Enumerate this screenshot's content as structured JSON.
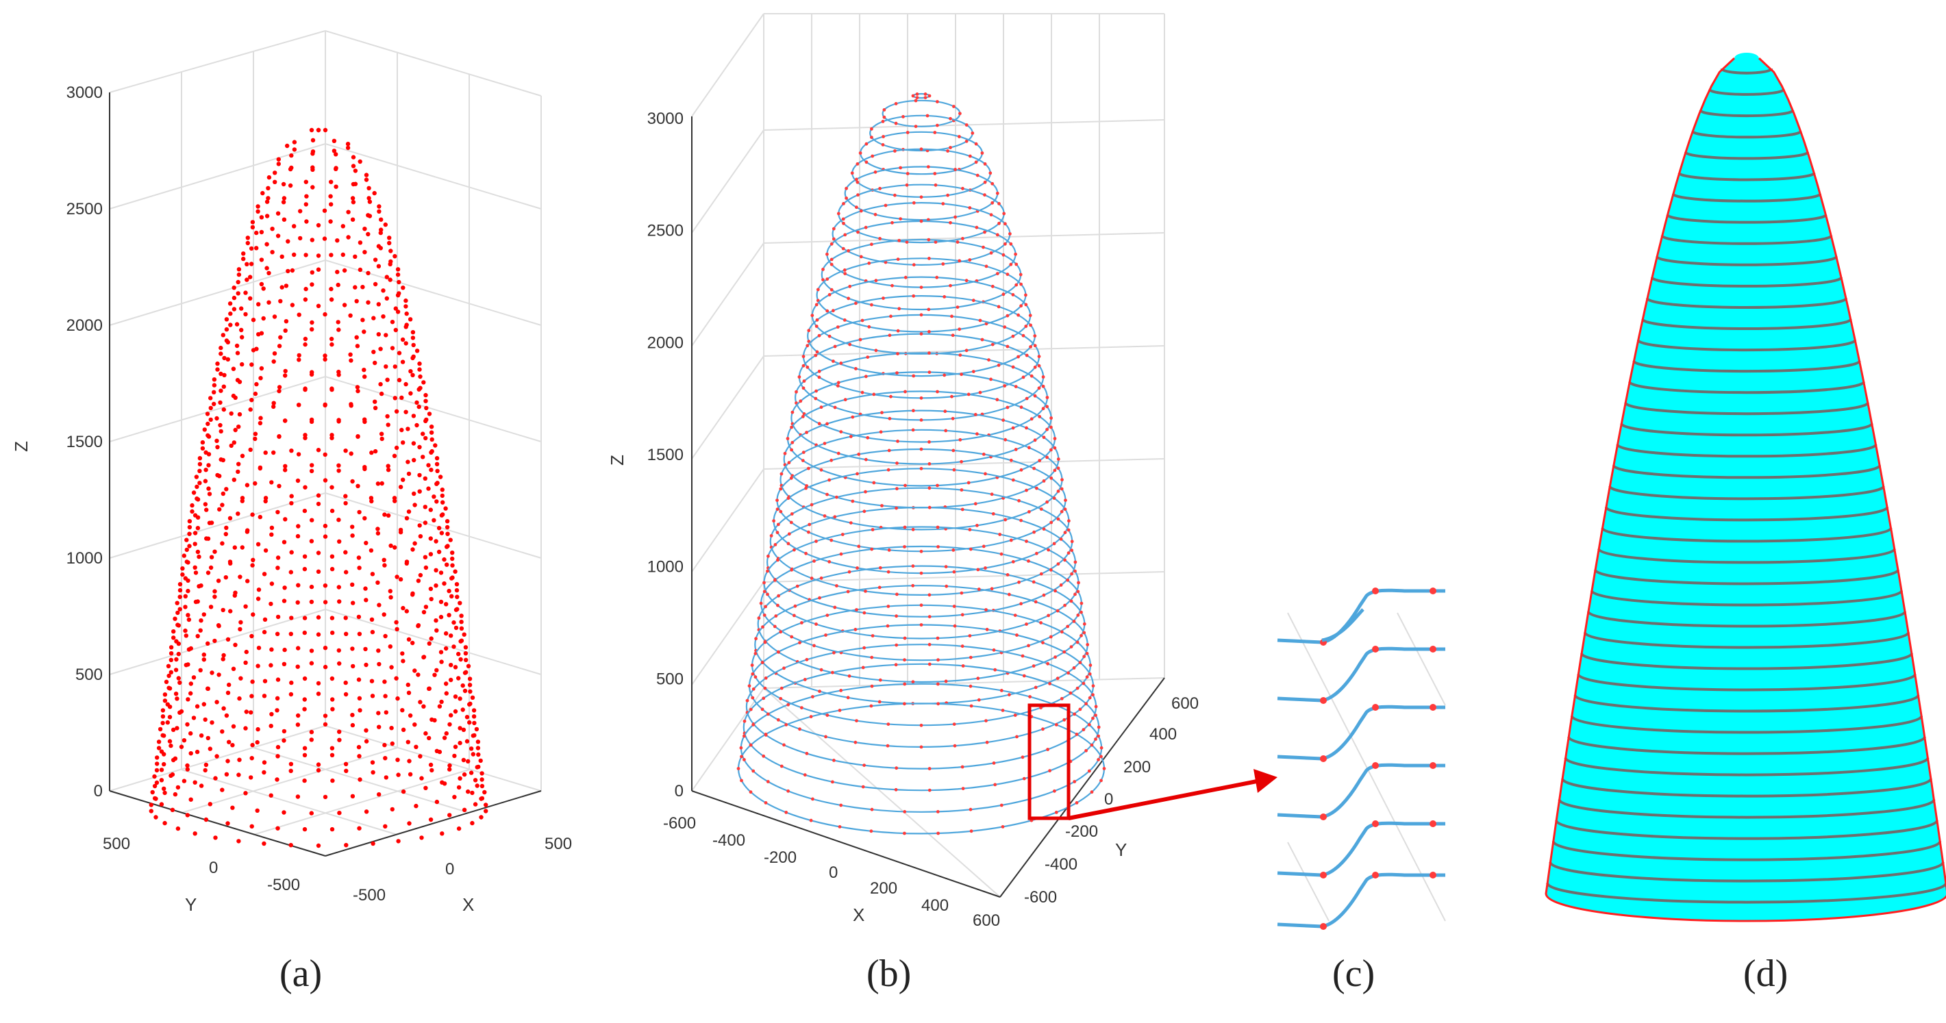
{
  "panels": {
    "a": {
      "label": "(a)",
      "z_axis": {
        "name": "Z",
        "ticks": [
          "0",
          "500",
          "1000",
          "1500",
          "2000",
          "2500",
          "3000"
        ]
      },
      "y_axis": {
        "name": "Y",
        "ticks": [
          "500",
          "0",
          "-500"
        ]
      },
      "x_axis": {
        "name": "X",
        "ticks": [
          "-500",
          "0",
          "500"
        ]
      },
      "point_color": "#ff0000"
    },
    "b": {
      "label": "(b)",
      "z_axis": {
        "name": "Z",
        "ticks": [
          "0",
          "500",
          "1000",
          "1500",
          "2000",
          "2500",
          "3000"
        ]
      },
      "x_axis": {
        "name": "X",
        "ticks": [
          "-600",
          "-400",
          "-200",
          "0",
          "200",
          "400",
          "600"
        ]
      },
      "y_axis": {
        "name": "Y",
        "ticks": [
          "600",
          "400",
          "200",
          "0",
          "-200",
          "-400",
          "-600"
        ]
      },
      "curve_color": "#4ea6dc",
      "point_color": "#ff3b3b",
      "highlight_color": "#e60000"
    },
    "c": {
      "label": "(c)",
      "curve_color": "#4ea6dc",
      "point_color": "#ff3b3b"
    },
    "d": {
      "label": "(d)",
      "fill_color": "#00ffff",
      "ring_color": "#6e6e6e",
      "outline_color": "#ff2020"
    }
  }
}
